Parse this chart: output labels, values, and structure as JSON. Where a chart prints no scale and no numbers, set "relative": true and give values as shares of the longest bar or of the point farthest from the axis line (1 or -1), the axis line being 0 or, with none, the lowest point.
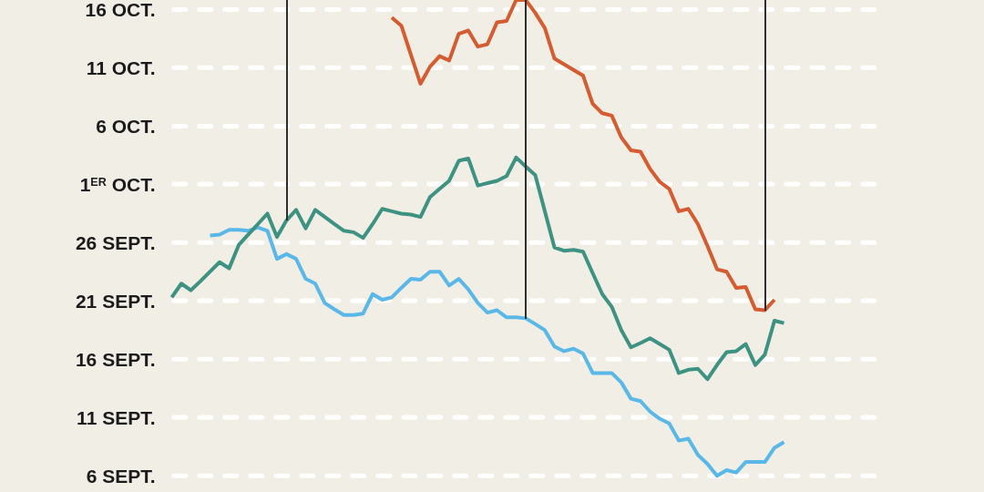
{
  "chart_data": {
    "type": "line",
    "relative": true,
    "categories": [
      null,
      null,
      null,
      null,
      null,
      null,
      null,
      null,
      null,
      null,
      null,
      null,
      null,
      null,
      null,
      null,
      null,
      null,
      null,
      null,
      null,
      null,
      null,
      null,
      null,
      null,
      null,
      null,
      null,
      null,
      null,
      null,
      null,
      null,
      null,
      null,
      null,
      null,
      null,
      null,
      null,
      null,
      null,
      null,
      null,
      null,
      null,
      null,
      null,
      null,
      null,
      null,
      null,
      null,
      null,
      null,
      null,
      null,
      null,
      null,
      null,
      null,
      null,
      null,
      null
    ],
    "series": [
      {
        "color": "#3e9282",
        "values": [
          0.375,
          0.404,
          0.39,
          0.409,
          0.429,
          0.449,
          0.436,
          0.485,
          0.507,
          0.529,
          0.551,
          0.502,
          0.537,
          0.559,
          0.52,
          0.559,
          0.544,
          0.529,
          0.515,
          0.512,
          0.5,
          0.529,
          0.561,
          0.556,
          0.551,
          0.549,
          0.544,
          0.586,
          0.603,
          0.62,
          0.662,
          0.667,
          0.61,
          0.615,
          0.62,
          0.63,
          0.669,
          0.65,
          0.632,
          0.556,
          0.48,
          0.473,
          0.475,
          0.471,
          0.426,
          0.382,
          0.355,
          0.306,
          0.27,
          0.279,
          0.289,
          0.277,
          0.265,
          0.216,
          0.223,
          0.225,
          0.203,
          0.233,
          0.26,
          0.262,
          0.277,
          0.233,
          0.255,
          0.326,
          0.321
        ]
      },
      {
        "color": "#5ab8e8",
        "values": [
          null,
          null,
          null,
          null,
          0.505,
          0.507,
          0.517,
          0.517,
          0.515,
          0.522,
          0.515,
          0.456,
          0.466,
          0.456,
          0.414,
          0.404,
          0.363,
          0.35,
          0.338,
          0.338,
          0.341,
          0.382,
          0.37,
          0.375,
          0.395,
          0.414,
          0.412,
          0.429,
          0.429,
          0.4,
          0.414,
          0.392,
          0.363,
          0.343,
          0.348,
          0.333,
          0.333,
          0.331,
          0.319,
          0.306,
          0.272,
          0.262,
          0.267,
          0.257,
          0.216,
          0.216,
          0.216,
          0.196,
          0.162,
          0.157,
          0.135,
          0.12,
          0.11,
          0.074,
          0.078,
          0.044,
          0.025,
          0,
          0.012,
          0.007,
          0.029,
          0.029,
          0.029,
          0.059,
          0.071
        ]
      },
      {
        "color": "#d55b30",
        "values": [
          null,
          null,
          null,
          null,
          null,
          null,
          null,
          null,
          null,
          null,
          null,
          null,
          null,
          null,
          null,
          null,
          null,
          null,
          null,
          null,
          null,
          null,
          null,
          0.963,
          0.946,
          0.885,
          0.824,
          0.86,
          0.882,
          0.873,
          0.929,
          0.936,
          0.902,
          0.907,
          0.953,
          0.956,
          1,
          1,
          0.973,
          0.941,
          0.877,
          0.865,
          0.853,
          0.841,
          0.782,
          0.762,
          0.757,
          0.711,
          0.684,
          0.681,
          0.645,
          0.618,
          0.603,
          0.556,
          0.561,
          0.529,
          0.483,
          0.434,
          0.429,
          0.395,
          0.397,
          0.35,
          0.348,
          0.37,
          null
        ]
      }
    ],
    "ref_lines": [
      {
        "axis": "y",
        "value": 0,
        "label": "6 SEPT.",
        "color": "#ffffff",
        "line_style": "dashed"
      },
      {
        "axis": "y",
        "value": 0.123,
        "label": "11 SEPT.",
        "color": "#ffffff",
        "line_style": "dashed"
      },
      {
        "axis": "y",
        "value": 0.245,
        "label": "16 SEPT.",
        "color": "#ffffff",
        "line_style": "dashed"
      },
      {
        "axis": "y",
        "value": 0.368,
        "label": "21 SEPT.",
        "color": "#ffffff",
        "line_style": "dashed"
      },
      {
        "axis": "y",
        "value": 0.49,
        "label": "26 SEPT.",
        "color": "#ffffff",
        "line_style": "dashed"
      },
      {
        "axis": "y",
        "value": 0.613,
        "label": "1$^{ER}$ OCT.",
        "color": "#ffffff",
        "line_style": "dashed"
      },
      {
        "axis": "y",
        "value": 0.735,
        "label": "6 OCT.",
        "color": "#ffffff",
        "line_style": "dashed"
      },
      {
        "axis": "y",
        "value": 0.858,
        "label": "11 OCT.",
        "color": "#ffffff",
        "line_style": "dashed"
      },
      {
        "axis": "y",
        "value": 0.98,
        "label": "16 OCT.",
        "color": "#ffffff",
        "line_style": "dashed"
      }
    ],
    "marker": "none"
  }
}
